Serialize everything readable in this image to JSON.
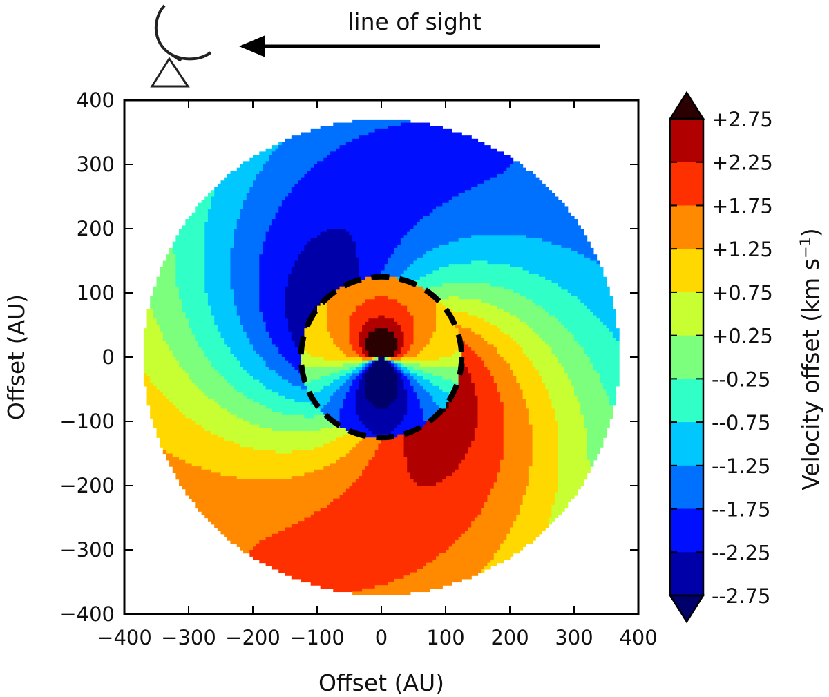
{
  "chart_data": {
    "type": "heatmap",
    "title": "",
    "xlabel": "Offset (AU)",
    "ylabel": "Offset (AU)",
    "xlim": [
      -400,
      400
    ],
    "ylim": [
      -400,
      400
    ],
    "x_ticks": [
      "−400",
      "−300",
      "−200",
      "−100",
      "0",
      "100",
      "200",
      "300",
      "400"
    ],
    "y_ticks": [
      "400",
      "300",
      "200",
      "100",
      "0",
      "−100",
      "−200",
      "−300",
      "−400"
    ],
    "x_tick_values": [
      -400,
      -300,
      -200,
      -100,
      0,
      100,
      200,
      300,
      400
    ],
    "y_tick_values": [
      400,
      300,
      200,
      100,
      0,
      -100,
      -200,
      -300,
      -400
    ],
    "disk_outer_radius_au": 370,
    "dashed_circle": {
      "center_au": [
        0,
        0
      ],
      "radius_au": 125
    },
    "grid": false,
    "colorbar": {
      "label": "Velocity offset (km s",
      "label_superscript": "−1",
      "label_close": ")",
      "levels": [
        2.75,
        2.25,
        1.75,
        1.25,
        0.75,
        0.25,
        -0.25,
        -0.75,
        -1.25,
        -1.75,
        -2.25,
        -2.75
      ],
      "tick_labels": [
        "+2.75",
        "+2.25",
        "+1.75",
        "+1.25",
        "+0.75",
        "+0.25",
        "--0.25",
        "--0.75",
        "--1.25",
        "--1.75",
        "--2.25",
        "--2.75"
      ],
      "colors": [
        "#2a0000",
        "#b00000",
        "#ff3000",
        "#ff8a00",
        "#ffd800",
        "#c8ff32",
        "#7cff7c",
        "#30ffc8",
        "#00c8ff",
        "#0070ff",
        "#0010ff",
        "#0000a8",
        "#00006a"
      ],
      "extend": "both",
      "placement": "right"
    },
    "annotation": {
      "text": "line of sight",
      "direction": "left",
      "icon": "radio-telescope-icon"
    }
  }
}
